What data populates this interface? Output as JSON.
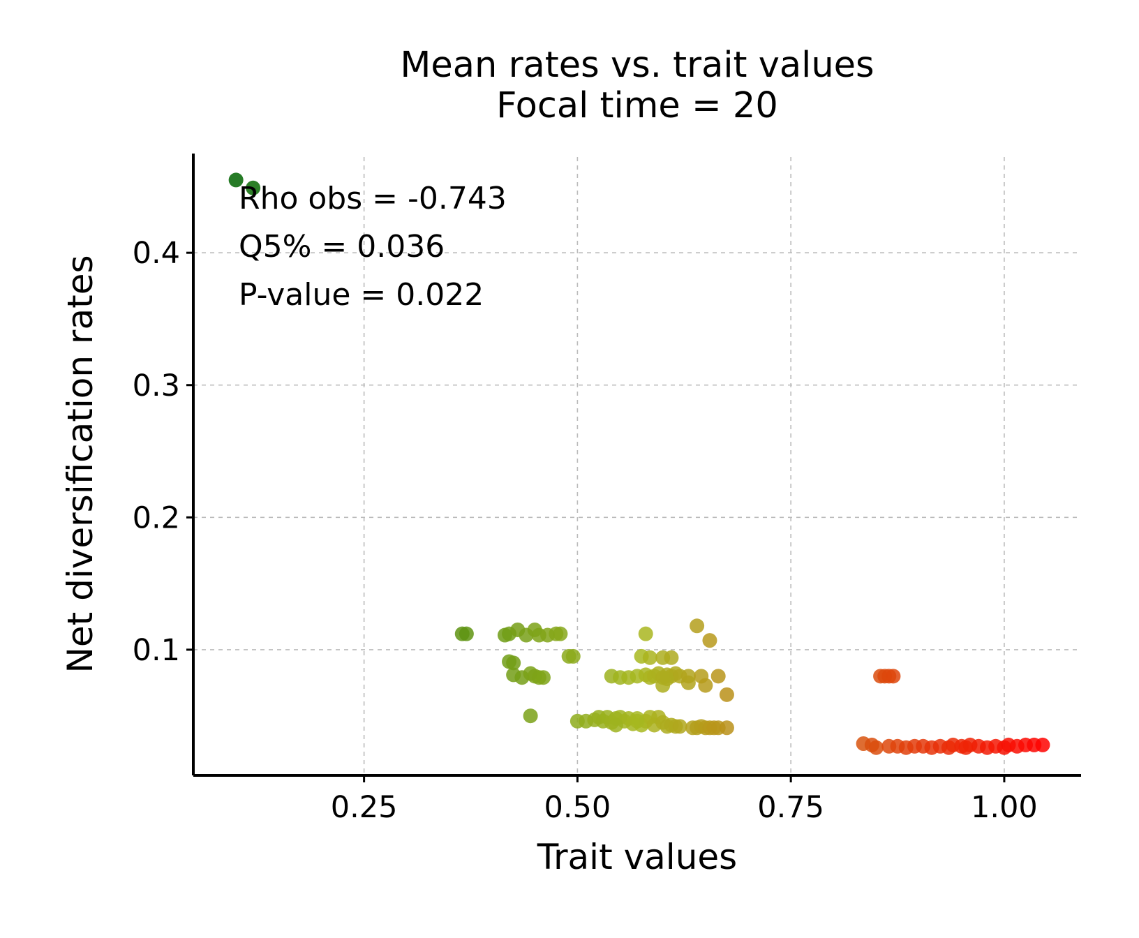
{
  "chart_data": {
    "type": "scatter",
    "title": "Mean rates vs. trait values",
    "subtitle": "Focal time = 20",
    "xlabel": "Trait values",
    "ylabel": "Net diversification rates",
    "xlim": [
      0.05,
      1.09
    ],
    "ylim": [
      0.005,
      0.475
    ],
    "xticks": [
      0.25,
      0.5,
      0.75,
      1.0
    ],
    "xtick_labels": [
      "0.25",
      "0.50",
      "0.75",
      "1.00"
    ],
    "yticks": [
      0.1,
      0.2,
      0.3,
      0.4
    ],
    "ytick_labels": [
      "0.1",
      "0.2",
      "0.3",
      "0.4"
    ],
    "grid": true,
    "color_scale": {
      "low": "#006400",
      "mid": "#a8b820",
      "high": "#ff0000",
      "domain": [
        0.1,
        1.05
      ]
    },
    "annotations": {
      "rho": "Rho obs = -0.743",
      "q5": "Q5% = 0.036",
      "pvalue": "P-value = 0.022"
    },
    "points": [
      {
        "x": 0.1,
        "y": 0.455
      },
      {
        "x": 0.12,
        "y": 0.449
      },
      {
        "x": 0.365,
        "y": 0.112
      },
      {
        "x": 0.37,
        "y": 0.112
      },
      {
        "x": 0.415,
        "y": 0.111
      },
      {
        "x": 0.42,
        "y": 0.112
      },
      {
        "x": 0.43,
        "y": 0.115
      },
      {
        "x": 0.44,
        "y": 0.111
      },
      {
        "x": 0.45,
        "y": 0.115
      },
      {
        "x": 0.455,
        "y": 0.111
      },
      {
        "x": 0.465,
        "y": 0.111
      },
      {
        "x": 0.475,
        "y": 0.112
      },
      {
        "x": 0.48,
        "y": 0.112
      },
      {
        "x": 0.42,
        "y": 0.091
      },
      {
        "x": 0.425,
        "y": 0.09
      },
      {
        "x": 0.425,
        "y": 0.081
      },
      {
        "x": 0.435,
        "y": 0.079
      },
      {
        "x": 0.445,
        "y": 0.082
      },
      {
        "x": 0.45,
        "y": 0.08
      },
      {
        "x": 0.455,
        "y": 0.079
      },
      {
        "x": 0.46,
        "y": 0.079
      },
      {
        "x": 0.445,
        "y": 0.05
      },
      {
        "x": 0.49,
        "y": 0.095
      },
      {
        "x": 0.495,
        "y": 0.095
      },
      {
        "x": 0.54,
        "y": 0.08
      },
      {
        "x": 0.55,
        "y": 0.079
      },
      {
        "x": 0.56,
        "y": 0.079
      },
      {
        "x": 0.57,
        "y": 0.08
      },
      {
        "x": 0.58,
        "y": 0.081
      },
      {
        "x": 0.585,
        "y": 0.079
      },
      {
        "x": 0.59,
        "y": 0.08
      },
      {
        "x": 0.595,
        "y": 0.082
      },
      {
        "x": 0.6,
        "y": 0.079
      },
      {
        "x": 0.605,
        "y": 0.081
      },
      {
        "x": 0.61,
        "y": 0.08
      },
      {
        "x": 0.615,
        "y": 0.082
      },
      {
        "x": 0.62,
        "y": 0.08
      },
      {
        "x": 0.63,
        "y": 0.08
      },
      {
        "x": 0.645,
        "y": 0.08
      },
      {
        "x": 0.575,
        "y": 0.095
      },
      {
        "x": 0.585,
        "y": 0.094
      },
      {
        "x": 0.6,
        "y": 0.094
      },
      {
        "x": 0.61,
        "y": 0.094
      },
      {
        "x": 0.58,
        "y": 0.112
      },
      {
        "x": 0.6,
        "y": 0.073
      },
      {
        "x": 0.605,
        "y": 0.078
      },
      {
        "x": 0.63,
        "y": 0.075
      },
      {
        "x": 0.65,
        "y": 0.073
      },
      {
        "x": 0.64,
        "y": 0.118
      },
      {
        "x": 0.655,
        "y": 0.107
      },
      {
        "x": 0.665,
        "y": 0.08
      },
      {
        "x": 0.675,
        "y": 0.066
      },
      {
        "x": 0.5,
        "y": 0.046
      },
      {
        "x": 0.51,
        "y": 0.046
      },
      {
        "x": 0.52,
        "y": 0.047
      },
      {
        "x": 0.525,
        "y": 0.049
      },
      {
        "x": 0.53,
        "y": 0.046
      },
      {
        "x": 0.535,
        "y": 0.049
      },
      {
        "x": 0.54,
        "y": 0.045
      },
      {
        "x": 0.545,
        "y": 0.048
      },
      {
        "x": 0.55,
        "y": 0.049
      },
      {
        "x": 0.555,
        "y": 0.046
      },
      {
        "x": 0.56,
        "y": 0.048
      },
      {
        "x": 0.565,
        "y": 0.044
      },
      {
        "x": 0.57,
        "y": 0.048
      },
      {
        "x": 0.575,
        "y": 0.043
      },
      {
        "x": 0.58,
        "y": 0.046
      },
      {
        "x": 0.585,
        "y": 0.049
      },
      {
        "x": 0.59,
        "y": 0.043
      },
      {
        "x": 0.595,
        "y": 0.049
      },
      {
        "x": 0.6,
        "y": 0.045
      },
      {
        "x": 0.605,
        "y": 0.042
      },
      {
        "x": 0.61,
        "y": 0.043
      },
      {
        "x": 0.615,
        "y": 0.042
      },
      {
        "x": 0.62,
        "y": 0.042
      },
      {
        "x": 0.635,
        "y": 0.041
      },
      {
        "x": 0.64,
        "y": 0.041
      },
      {
        "x": 0.645,
        "y": 0.042
      },
      {
        "x": 0.65,
        "y": 0.041
      },
      {
        "x": 0.655,
        "y": 0.041
      },
      {
        "x": 0.66,
        "y": 0.041
      },
      {
        "x": 0.665,
        "y": 0.041
      },
      {
        "x": 0.675,
        "y": 0.041
      },
      {
        "x": 0.545,
        "y": 0.043
      },
      {
        "x": 0.57,
        "y": 0.046
      },
      {
        "x": 0.855,
        "y": 0.08
      },
      {
        "x": 0.86,
        "y": 0.08
      },
      {
        "x": 0.865,
        "y": 0.08
      },
      {
        "x": 0.87,
        "y": 0.08
      },
      {
        "x": 0.835,
        "y": 0.029
      },
      {
        "x": 0.845,
        "y": 0.028
      },
      {
        "x": 0.85,
        "y": 0.026
      },
      {
        "x": 0.865,
        "y": 0.027
      },
      {
        "x": 0.875,
        "y": 0.027
      },
      {
        "x": 0.885,
        "y": 0.026
      },
      {
        "x": 0.895,
        "y": 0.027
      },
      {
        "x": 0.905,
        "y": 0.027
      },
      {
        "x": 0.915,
        "y": 0.026
      },
      {
        "x": 0.925,
        "y": 0.027
      },
      {
        "x": 0.935,
        "y": 0.026
      },
      {
        "x": 0.94,
        "y": 0.028
      },
      {
        "x": 0.95,
        "y": 0.027
      },
      {
        "x": 0.955,
        "y": 0.026
      },
      {
        "x": 0.96,
        "y": 0.028
      },
      {
        "x": 0.97,
        "y": 0.027
      },
      {
        "x": 0.98,
        "y": 0.026
      },
      {
        "x": 0.99,
        "y": 0.027
      },
      {
        "x": 1.0,
        "y": 0.026
      },
      {
        "x": 1.005,
        "y": 0.028
      },
      {
        "x": 1.015,
        "y": 0.027
      },
      {
        "x": 1.025,
        "y": 0.028
      },
      {
        "x": 1.035,
        "y": 0.028
      },
      {
        "x": 1.045,
        "y": 0.028
      }
    ]
  }
}
